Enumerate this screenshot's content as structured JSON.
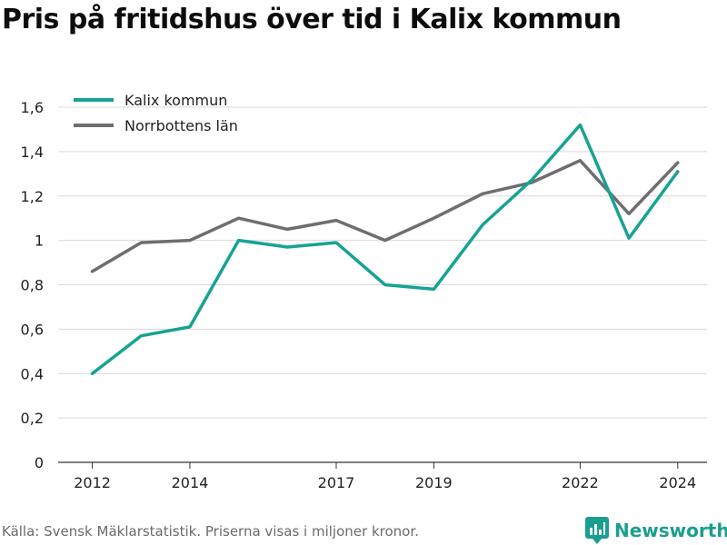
{
  "chart_data": {
    "type": "line",
    "title": "Pris på fritidshus över tid i Kalix kommun",
    "xlabel": "",
    "ylabel": "",
    "x": [
      2012,
      2013,
      2014,
      2015,
      2016,
      2017,
      2018,
      2019,
      2020,
      2021,
      2022,
      2023,
      2024
    ],
    "x_ticks": [
      "2012",
      "2014",
      "2017",
      "2019",
      "2022",
      "2024"
    ],
    "y_ticks": [
      "0",
      "0,2",
      "0,4",
      "0,6",
      "0,8",
      "1",
      "1,2",
      "1,4",
      "1,6"
    ],
    "ylim": [
      0,
      1.6
    ],
    "grid": true,
    "legend_position": "top-left",
    "series": [
      {
        "name": "Kalix kommun",
        "color": "#16a394",
        "values": [
          0.4,
          0.57,
          0.61,
          1.0,
          0.97,
          0.99,
          0.8,
          0.78,
          1.07,
          1.27,
          1.52,
          1.01,
          1.31
        ]
      },
      {
        "name": "Norrbottens län",
        "color": "#6e6e72",
        "values": [
          0.86,
          0.99,
          1.0,
          1.1,
          1.05,
          1.09,
          1.0,
          1.1,
          1.21,
          1.26,
          1.36,
          1.12,
          1.35
        ]
      }
    ]
  },
  "footer": {
    "source": "Källa: Svensk Mäklarstatistik. Priserna visas i miljoner kronor."
  },
  "brand": {
    "name": "Newsworthy",
    "icon": "bar-chart-icon",
    "color": "#1a9e8f"
  }
}
